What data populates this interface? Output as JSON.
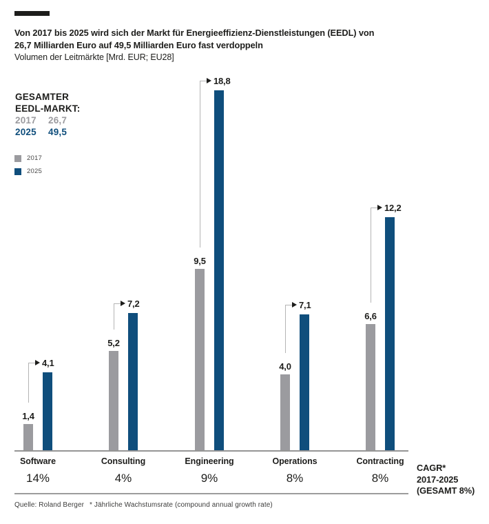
{
  "header": {
    "title_line1": "Von 2017 bis 2025 wird sich der Markt für Energieeffizienz-Dienstleistungen (EEDL) von",
    "title_line2": "26,7 Milliarden Euro auf 49,5 Milliarden Euro fast verdoppeln",
    "subtitle": "Volumen der Leitmärkte [Mrd. EUR; EU28]"
  },
  "summary": {
    "heading_line1": "GESAMTER",
    "heading_line2": "EEDL-MARKT:",
    "rows": [
      {
        "year": "2017",
        "value": "26,7",
        "color": "#9B9B9F"
      },
      {
        "year": "2025",
        "value": "49,5",
        "color": "#0F4E7C"
      }
    ]
  },
  "legend": {
    "items": [
      {
        "label": "2017",
        "color": "#9B9B9F"
      },
      {
        "label": "2025",
        "color": "#0F4E7C"
      }
    ]
  },
  "chart_data": {
    "type": "bar",
    "title": "Von 2017 bis 2025 wird sich der Markt für Energieeffizienz-Dienstleistungen (EEDL) von 26,7 Milliarden Euro auf 49,5 Milliarden Euro fast verdoppeln",
    "subtitle": "Volumen der Leitmärkte [Mrd. EUR; EU28]",
    "units": "Mrd. EUR; EU28",
    "categories": [
      "Software",
      "Consulting",
      "Engineering",
      "Operations",
      "Contracting"
    ],
    "series": [
      {
        "name": "2017",
        "color": "#9B9B9F",
        "values": [
          1.4,
          5.2,
          9.5,
          4.0,
          6.6
        ],
        "labels": [
          "1,4",
          "5,2",
          "9,5",
          "4,0",
          "6,6"
        ]
      },
      {
        "name": "2025",
        "color": "#0F4E7C",
        "values": [
          4.1,
          7.2,
          18.8,
          7.1,
          12.2
        ],
        "labels": [
          "4,1",
          "7,2",
          "18,8",
          "7,1",
          "12,2"
        ]
      }
    ],
    "cagr_per_category": [
      "14%",
      "4%",
      "9%",
      "8%",
      "8%"
    ],
    "total_market": {
      "y2017": 26.7,
      "y2025": 49.5,
      "cagr_total": "8%"
    },
    "ylim": [
      0,
      18.8
    ],
    "grid": false,
    "legend_position": "top-left"
  },
  "cagr_note": {
    "line1": "CAGR*",
    "line2": "2017-2025",
    "line3": "(GESAMT 8%)"
  },
  "footer": {
    "source": "Quelle: Roland Berger",
    "footnote": "* Jährliche Wachstumsrate (compound annual growth rate)"
  }
}
